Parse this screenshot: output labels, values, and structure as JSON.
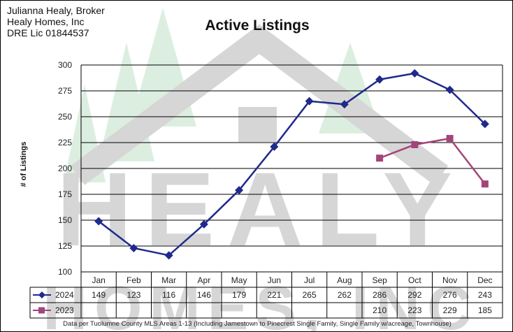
{
  "header": {
    "broker_lines": [
      "Julianna Healy, Broker",
      "Healy Homes, Inc",
      "DRE Lic 01844537"
    ]
  },
  "watermark": {
    "line1": "HEALY",
    "line2": "HOMES, INC",
    "color": "#d6d6d6",
    "tree_color": "#dceee0"
  },
  "footnote": "Data per Tuolumne County MLS Areas 1-13 (Including Jamestown to Pinecrest Single Family, Single Family w/acreage, Townhouse)",
  "chart_data": {
    "type": "line",
    "title": "Active Listings",
    "xlabel": "",
    "ylabel": "# of Listings",
    "categories": [
      "Jan",
      "Feb",
      "Mar",
      "Apr",
      "May",
      "Jun",
      "Jul",
      "Aug",
      "Sep",
      "Oct",
      "Nov",
      "Dec"
    ],
    "ylim": [
      100,
      300
    ],
    "yticks": [
      100,
      125,
      150,
      175,
      200,
      225,
      250,
      275,
      300
    ],
    "grid": true,
    "legend": "data-table",
    "series": [
      {
        "name": "2024",
        "color": "#1f2a8c",
        "marker": "diamond",
        "values": [
          149,
          123,
          116,
          146,
          179,
          221,
          265,
          262,
          286,
          292,
          276,
          243
        ]
      },
      {
        "name": "2023",
        "color": "#a3457a",
        "marker": "square",
        "values": [
          null,
          null,
          null,
          null,
          null,
          null,
          null,
          null,
          210,
          223,
          229,
          185
        ]
      }
    ]
  }
}
